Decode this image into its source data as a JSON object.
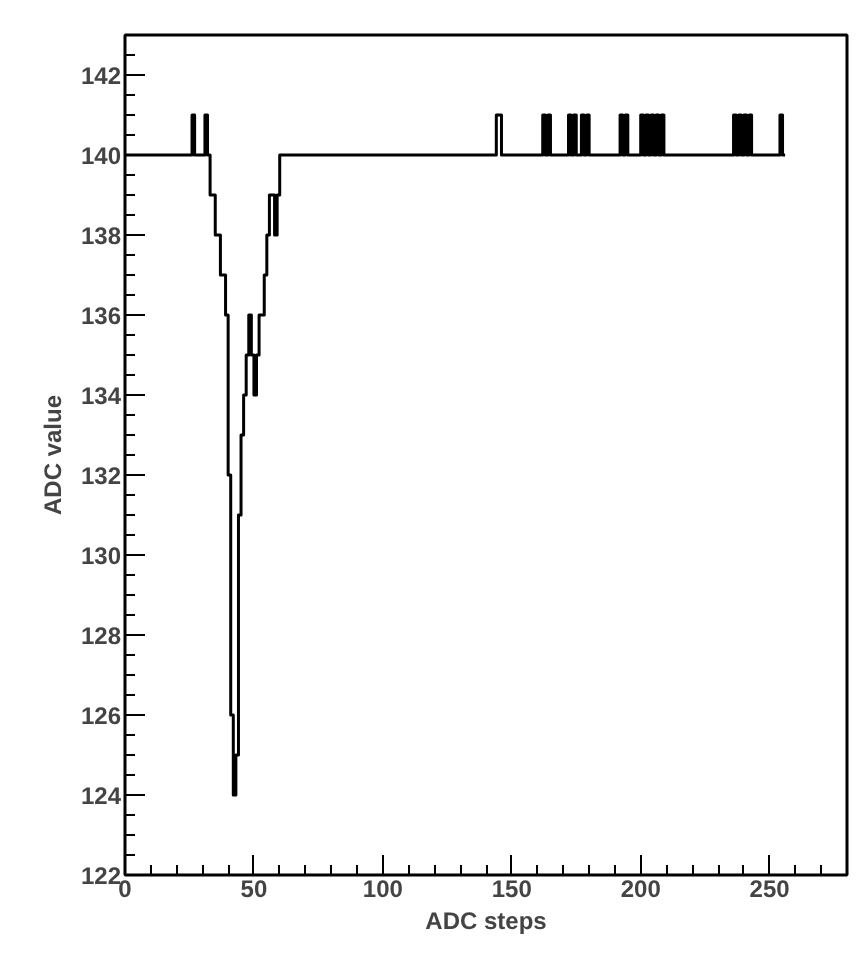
{
  "chart_data": {
    "type": "step",
    "xlabel": "ADC steps",
    "ylabel": "ADC value",
    "x": [
      0,
      26,
      27,
      31,
      32,
      33,
      35,
      37,
      39,
      40,
      41,
      42,
      43,
      44,
      45,
      46,
      47,
      48,
      49,
      50,
      51,
      52,
      54,
      55,
      56,
      58,
      59,
      60,
      144,
      146,
      162,
      163,
      164,
      165,
      172,
      173,
      174,
      175,
      177,
      178,
      179,
      180,
      192,
      193,
      194,
      195,
      200,
      201,
      202,
      203,
      204,
      205,
      206,
      207,
      208,
      209,
      236,
      237,
      238,
      239,
      240,
      241,
      242,
      243,
      254,
      255,
      256
    ],
    "values": [
      140,
      141,
      140,
      141,
      140,
      139,
      138,
      137,
      136,
      132,
      126,
      124,
      125,
      131,
      133,
      134,
      135,
      136,
      135,
      134,
      135,
      136,
      137,
      138,
      139,
      138,
      139,
      140,
      141,
      140,
      141,
      140,
      141,
      140,
      141,
      140,
      141,
      140,
      141,
      140,
      141,
      140,
      141,
      140,
      141,
      140,
      141,
      140,
      141,
      140,
      141,
      140,
      141,
      140,
      141,
      140,
      141,
      140,
      141,
      140,
      141,
      140,
      141,
      140,
      141,
      140,
      140
    ],
    "color": "#000000",
    "xlim": [
      0,
      280
    ],
    "xticks": [
      0,
      50,
      100,
      150,
      200,
      250
    ],
    "ylim": [
      122,
      143
    ],
    "yticks": [
      122,
      124,
      126,
      128,
      130,
      132,
      134,
      136,
      138,
      140,
      142
    ],
    "grid": false
  }
}
